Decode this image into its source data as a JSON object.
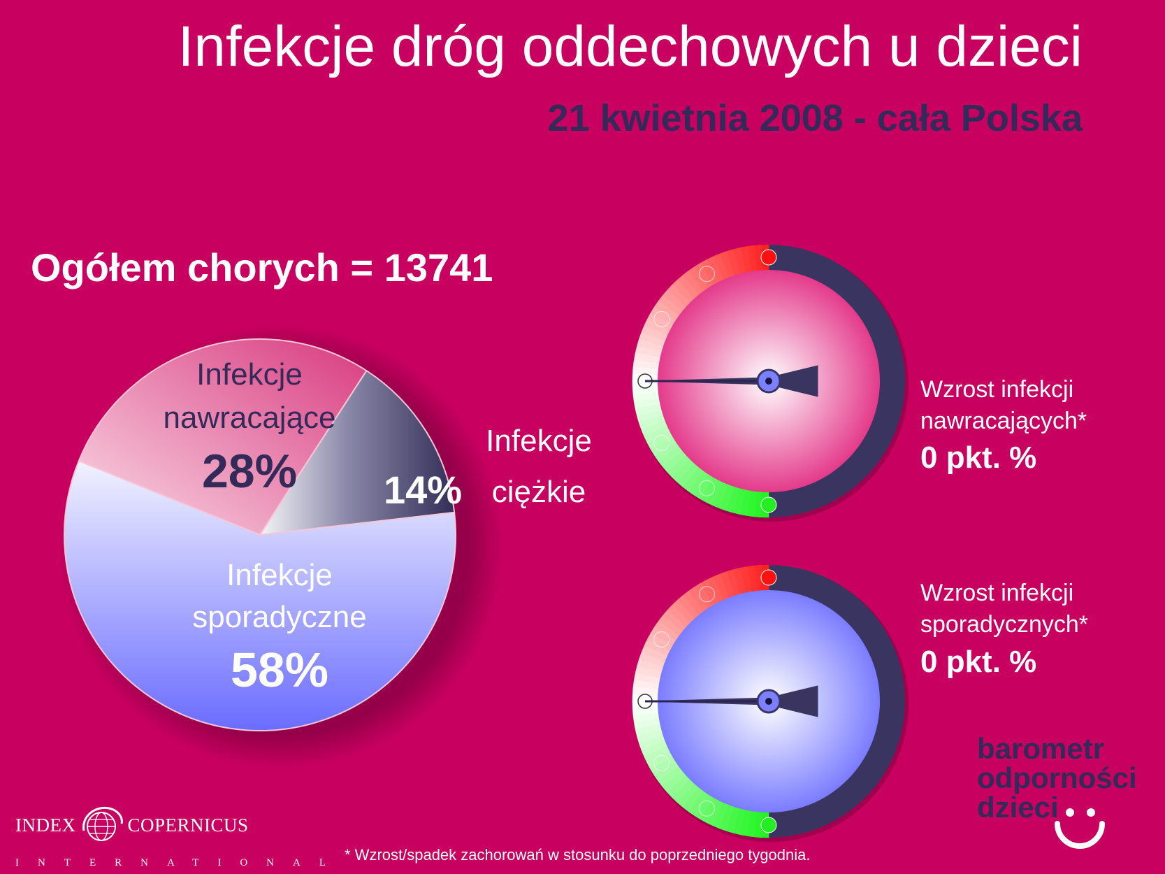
{
  "header": {
    "title": "Infekcje dróg oddechowych u dzieci",
    "subtitle": "21 kwietnia 2008 - cała Polska"
  },
  "summary": {
    "total_label": "Ogółem chorych = 13741"
  },
  "chart_data": [
    {
      "type": "pie",
      "slices": [
        {
          "label_line1": "Infekcje",
          "label_line2": "nawracające",
          "value": 28,
          "value_label": "28%",
          "color": "#e8709c"
        },
        {
          "label_line1": "Infekcje",
          "label_line2": "ciężkie",
          "value": 14,
          "value_label": "14%",
          "color": "#3c3762"
        },
        {
          "label_line1": "Infekcje",
          "label_line2": "sporadyczne",
          "value": 58,
          "value_label": "58%",
          "color": "#8a8cff"
        }
      ]
    },
    {
      "type": "gauge",
      "label_line1": "Wzrost infekcji",
      "label_line2": "nawracających*",
      "value": 0,
      "value_label": "0 pkt. %",
      "face_color": "#e43a8b"
    },
    {
      "type": "gauge",
      "label_line1": "Wzrost infekcji",
      "label_line2": "sporadycznych*",
      "value": 0,
      "value_label": "0 pkt. %",
      "face_color": "#7a7cff"
    }
  ],
  "branding": {
    "logo_index": "INDEX",
    "logo_copernicus": "COPERNICUS",
    "logo_international": "INTERNATIONAL",
    "brand_line1": "barometr",
    "brand_line2": "odporności",
    "brand_line3": "dzieci"
  },
  "footnote": "* Wzrost/spadek zachorowań w stosunku do poprzedniego tygodnia.",
  "colors": {
    "background": "#c8005f",
    "navy": "#332a5a",
    "white": "#ffffff",
    "red": "#ff2020",
    "green": "#22ee22"
  }
}
